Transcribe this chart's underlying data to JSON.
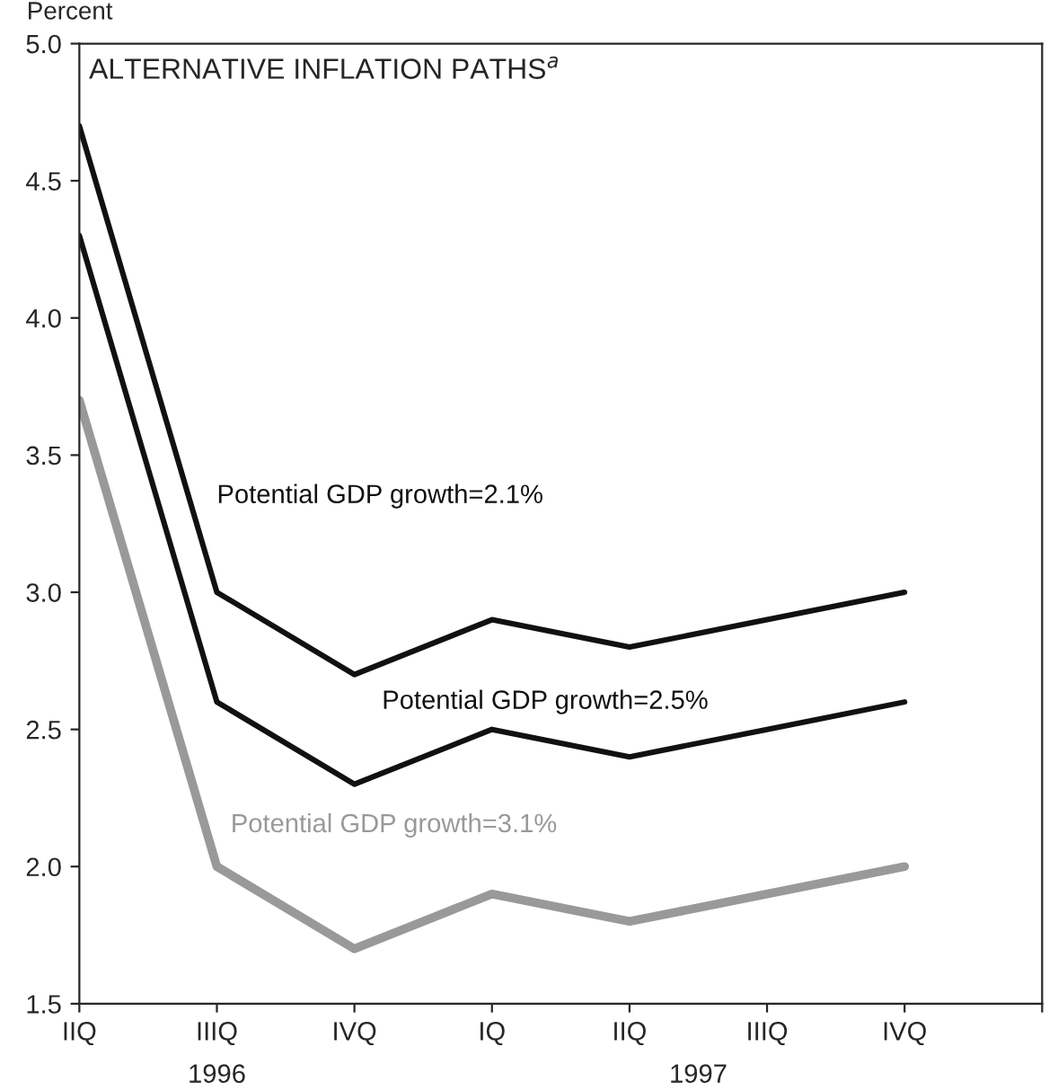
{
  "chart_data": {
    "type": "line",
    "title": "ALTERNATIVE INFLATION PATHS$^{a}$",
    "ylabel": "Percent",
    "categories": [
      "IIQ",
      "IIIQ",
      "IVQ",
      "IQ",
      "IIQ",
      "IIIQ",
      "IVQ",
      null
    ],
    "ylim": [
      1.5,
      5.0
    ],
    "yticks": [
      {
        "value": 1.5,
        "label": "1.5"
      },
      {
        "value": 2.0,
        "label": "2.0"
      },
      {
        "value": 2.5,
        "label": "2.5"
      },
      {
        "value": 3.0,
        "label": "3.0"
      },
      {
        "value": 3.5,
        "label": "3.5"
      },
      {
        "value": 4.0,
        "label": "4.0"
      },
      {
        "value": 4.5,
        "label": "4.5"
      },
      {
        "value": 5.0,
        "label": "5.0"
      }
    ],
    "annotations": [
      "1996",
      "1997"
    ],
    "series": [
      {
        "name": "Potential GDP growth=2.1%",
        "color": "#111111",
        "values": [
          4.7,
          3.0,
          2.7,
          2.9,
          2.8,
          2.9,
          3.0,
          null
        ]
      },
      {
        "name": "Potential GDP growth=2.5%",
        "color": "#111111",
        "values": [
          4.3,
          2.6,
          2.3,
          2.5,
          2.4,
          2.5,
          2.6,
          null
        ]
      },
      {
        "name": "Potential GDP growth=3.1%",
        "color": "#999999",
        "values": [
          3.7,
          2.0,
          1.7,
          1.9,
          1.8,
          1.9,
          2.0,
          null
        ]
      }
    ],
    "grid": false,
    "legend": false,
    "marker": "none",
    "line_style": "solid"
  }
}
